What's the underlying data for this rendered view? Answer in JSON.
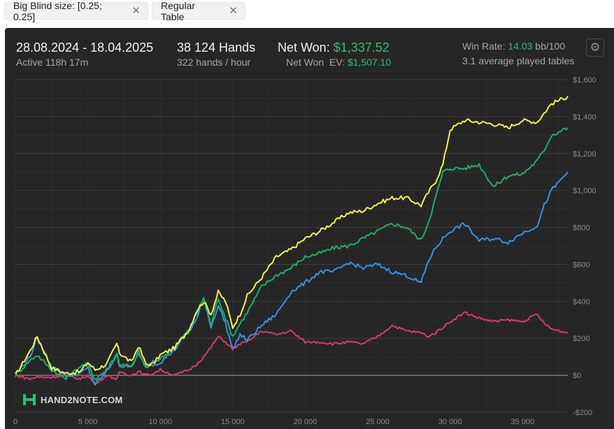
{
  "filters": [
    {
      "label": "Big Blind size: [0.25; 0.25]",
      "close": "✕"
    },
    {
      "label": "Regular Table",
      "close": "✕"
    }
  ],
  "header": {
    "date_range": "28.08.2024 - 18.04.2025",
    "active": "Active 118h 17m",
    "hands": "38 124 Hands",
    "hands_per_hour": "322 hands / hour",
    "net_won_label": "Net Won:",
    "net_won_value": "$1,337.52",
    "net_won_ev_label": "Net Won  EV:",
    "net_won_ev_value": "$1,507.10",
    "win_rate_label": "Win Rate:",
    "win_rate_value": "14.03",
    "win_rate_unit": "bb/100",
    "tables": "3.1 average played tables",
    "settings_icon": "gear-icon"
  },
  "logo": {
    "text": "HAND2NOTE.COM"
  },
  "colors": {
    "yellow": "#f2f24a",
    "green": "#1fae68",
    "blue": "#3b8fe0",
    "pink": "#d63a6e",
    "accent": "#2fbf71"
  },
  "chart_data": {
    "type": "line",
    "title": "",
    "xlabel": "",
    "ylabel": "",
    "xlim": [
      0,
      38124
    ],
    "ylim": [
      -200,
      1600
    ],
    "x_ticks": [
      0,
      5000,
      10000,
      15000,
      20000,
      25000,
      30000,
      35000
    ],
    "x_tick_labels": [
      "0",
      "5 000",
      "10 000",
      "15 000",
      "20 000",
      "25 000",
      "30 000",
      "35 000"
    ],
    "y_ticks": [
      -200,
      0,
      200,
      400,
      600,
      800,
      1000,
      1200,
      1400,
      1600
    ],
    "y_tick_labels": [
      "-$200",
      "$0",
      "$200",
      "$400",
      "$600",
      "$800",
      "$1,000",
      "$1,200",
      "$1,400",
      "$1,600"
    ],
    "grid": true,
    "x": [
      0,
      1000,
      1500,
      2500,
      3500,
      4500,
      5000,
      5500,
      6300,
      7000,
      7200,
      8000,
      8500,
      9000,
      9500,
      10000,
      11000,
      12000,
      12500,
      13000,
      13500,
      14000,
      14500,
      15000,
      15500,
      16000,
      17000,
      18000,
      19000,
      20000,
      21000,
      22000,
      23000,
      24000,
      25000,
      26000,
      27000,
      28000,
      28500,
      29000,
      29500,
      30000,
      31000,
      32000,
      33000,
      34000,
      35000,
      36000,
      36500,
      37000,
      38124
    ],
    "series": [
      {
        "name": "",
        "color": "#f2f24a",
        "values": [
          0,
          130,
          210,
          40,
          10,
          20,
          70,
          30,
          60,
          170,
          120,
          70,
          160,
          60,
          60,
          110,
          150,
          250,
          350,
          400,
          330,
          450,
          400,
          260,
          330,
          430,
          530,
          640,
          680,
          740,
          780,
          830,
          880,
          890,
          930,
          960,
          960,
          920,
          990,
          1050,
          1140,
          1330,
          1380,
          1370,
          1360,
          1340,
          1380,
          1370,
          1420,
          1470,
          1510
        ]
      },
      {
        "name": "",
        "color": "#1fae68",
        "values": [
          0,
          80,
          110,
          30,
          -20,
          50,
          60,
          -20,
          30,
          120,
          60,
          40,
          130,
          40,
          70,
          90,
          150,
          250,
          330,
          420,
          270,
          420,
          310,
          210,
          280,
          340,
          480,
          540,
          580,
          640,
          660,
          690,
          700,
          740,
          780,
          820,
          800,
          730,
          830,
          960,
          1100,
          1120,
          1120,
          1140,
          1020,
          1080,
          1090,
          1160,
          1220,
          1300,
          1340
        ]
      },
      {
        "name": "",
        "color": "#3b8fe0",
        "values": [
          0,
          100,
          200,
          50,
          0,
          10,
          40,
          -50,
          20,
          110,
          50,
          50,
          110,
          50,
          60,
          70,
          140,
          240,
          300,
          420,
          260,
          380,
          280,
          140,
          220,
          190,
          270,
          330,
          450,
          500,
          560,
          560,
          610,
          580,
          600,
          560,
          540,
          500,
          620,
          690,
          740,
          780,
          820,
          730,
          740,
          720,
          770,
          810,
          920,
          1000,
          1100
        ]
      },
      {
        "name": "",
        "color": "#d63a6e",
        "values": [
          0,
          -20,
          -10,
          -10,
          0,
          -20,
          0,
          -50,
          0,
          -20,
          20,
          0,
          20,
          0,
          10,
          30,
          0,
          30,
          60,
          100,
          150,
          210,
          180,
          140,
          170,
          180,
          240,
          220,
          240,
          180,
          180,
          170,
          180,
          170,
          210,
          270,
          240,
          230,
          210,
          230,
          260,
          290,
          340,
          310,
          290,
          300,
          290,
          330,
          280,
          250,
          230
        ]
      }
    ]
  }
}
